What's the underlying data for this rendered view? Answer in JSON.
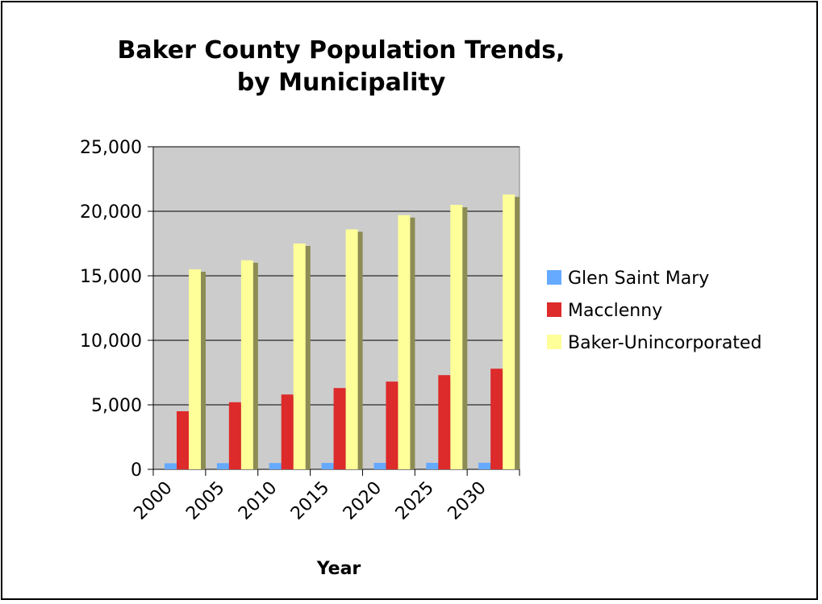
{
  "chart_data": {
    "type": "bar",
    "title_line1": "Baker County Population Trends,",
    "title_line2": "by Municipality",
    "xlabel": "Year",
    "ylabel": "",
    "ylim": [
      0,
      25000
    ],
    "yticks": [
      "0",
      "5,000",
      "10,000",
      "15,000",
      "20,000",
      "25,000"
    ],
    "ytick_values": [
      0,
      5000,
      10000,
      15000,
      20000,
      25000
    ],
    "categories": [
      "2000",
      "2005",
      "2010",
      "2015",
      "2020",
      "2025",
      "2030"
    ],
    "series": [
      {
        "name": "Glen Saint Mary",
        "color": "#66aaff",
        "values": [
          470,
          480,
          490,
          495,
          500,
          505,
          510
        ]
      },
      {
        "name": "Macclenny",
        "color": "#dd2a2a",
        "values": [
          4500,
          5200,
          5800,
          6300,
          6800,
          7300,
          7800
        ]
      },
      {
        "name": "Baker-Unincorporated",
        "color": "#ffff99",
        "values": [
          15500,
          16200,
          17500,
          18600,
          19700,
          20500,
          21300
        ]
      }
    ],
    "grid": true,
    "plot_background": "#cccccc",
    "legend_position": "right"
  }
}
